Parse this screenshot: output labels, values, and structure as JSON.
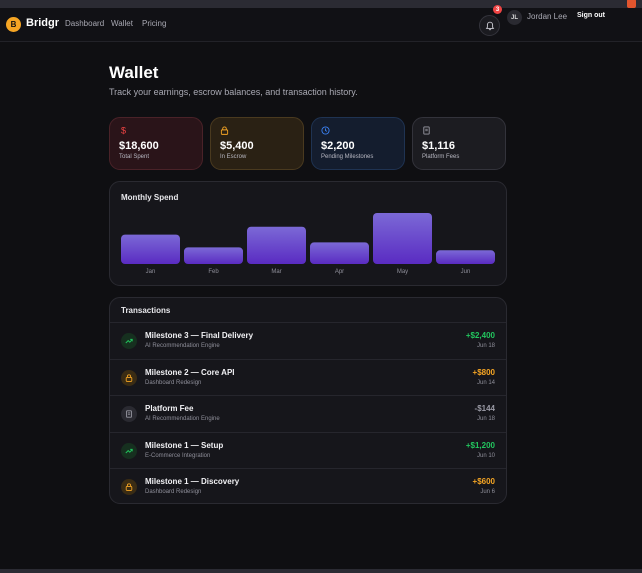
{
  "nav": {
    "logo_letter": "B",
    "brand": "Bridgr",
    "links": [
      "Dashboard",
      "Wallet",
      "Pricing"
    ],
    "notifications_count": "3",
    "user_initials": "JL",
    "user_name": "Jordan Lee",
    "signout_label": "Sign out"
  },
  "page": {
    "title": "Wallet",
    "subtitle": "Track your earnings, escrow balances, and transaction history."
  },
  "stats": [
    {
      "icon": "dollar-icon",
      "value": "$18,600",
      "label": "Total Spent",
      "color": "#ef4444"
    },
    {
      "icon": "lock-icon",
      "value": "$5,400",
      "label": "In Escrow",
      "color": "#f5a524"
    },
    {
      "icon": "clock-icon",
      "value": "$2,200",
      "label": "Pending Milestones",
      "color": "#3b82f6"
    },
    {
      "icon": "receipt-icon",
      "value": "$1,116",
      "label": "Platform Fees",
      "color": "#9a9aa5"
    }
  ],
  "spend_card": {
    "title": "Monthly Spend"
  },
  "chart_data": {
    "type": "bar",
    "title": "Monthly Spend",
    "categories": [
      "Jan",
      "Feb",
      "Mar",
      "Apr",
      "May",
      "Jun"
    ],
    "values": [
      3000,
      1700,
      3800,
      2200,
      5200,
      1400
    ],
    "ylim": [
      0,
      5200
    ],
    "grid": false,
    "colors": {
      "top": "#7b69d6",
      "bottom": "#5a2bc2"
    }
  },
  "transactions": {
    "title": "Transactions",
    "rows": [
      {
        "name": "Milestone 3 — Final Delivery",
        "project": "AI Recommendation Engine",
        "amount": "+$2,400",
        "date": "Jun 18",
        "kind": "trend-up-icon",
        "color": "#22c55e"
      },
      {
        "name": "Milestone 2 — Core API",
        "project": "Dashboard Redesign",
        "amount": "+$800",
        "date": "Jun 14",
        "kind": "lock-icon",
        "color": "#f5a524"
      },
      {
        "name": "Platform Fee",
        "project": "AI Recommendation Engine",
        "amount": "-$144",
        "date": "Jun 18",
        "kind": "receipt-icon",
        "color": "#9a9aa5"
      },
      {
        "name": "Milestone 1 — Setup",
        "project": "E-Commerce Integration",
        "amount": "+$1,200",
        "date": "Jun 10",
        "kind": "trend-up-icon",
        "color": "#22c55e"
      },
      {
        "name": "Milestone 1 — Discovery",
        "project": "Dashboard Redesign",
        "amount": "+$600",
        "date": "Jun 6",
        "kind": "lock-icon",
        "color": "#f5a524"
      }
    ]
  }
}
